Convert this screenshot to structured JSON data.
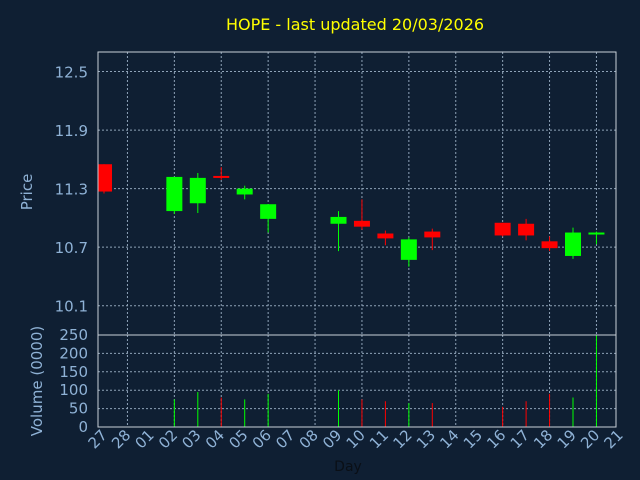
{
  "chart_data": [
    {
      "type": "candlestick",
      "title": "HOPE - last updated 20/03/2026",
      "ylabel": "Price",
      "ylim": [
        9.8,
        12.7
      ],
      "yticks": [
        10.1,
        10.7,
        11.3,
        11.9,
        12.5
      ],
      "ytick_labels": [
        "10.1",
        "10.7",
        "11.3",
        "11.9",
        "12.5"
      ],
      "grid": true,
      "x": [
        "27",
        "28",
        "01",
        "02",
        "03",
        "04",
        "05",
        "06",
        "07",
        "08",
        "09",
        "10",
        "11",
        "12",
        "13",
        "14",
        "15",
        "16",
        "17",
        "18",
        "19",
        "20",
        "21"
      ],
      "candles": [
        {
          "day": "27",
          "open": 11.55,
          "close": 11.27,
          "high": 11.55,
          "low": 11.25
        },
        {
          "day": "02",
          "open": 11.07,
          "close": 11.42,
          "high": 11.42,
          "low": 11.04
        },
        {
          "day": "03",
          "open": 11.15,
          "close": 11.41,
          "high": 11.46,
          "low": 11.05
        },
        {
          "day": "04",
          "open": 11.43,
          "close": 11.41,
          "high": 11.52,
          "low": 11.39
        },
        {
          "day": "05",
          "open": 11.24,
          "close": 11.3,
          "high": 11.33,
          "low": 11.19
        },
        {
          "day": "06",
          "open": 10.99,
          "close": 11.14,
          "high": 11.14,
          "low": 10.85
        },
        {
          "day": "09",
          "open": 10.94,
          "close": 11.01,
          "high": 11.07,
          "low": 10.66
        },
        {
          "day": "10",
          "open": 10.97,
          "close": 10.91,
          "high": 11.19,
          "low": 10.88
        },
        {
          "day": "11",
          "open": 10.84,
          "close": 10.79,
          "high": 10.87,
          "low": 10.72
        },
        {
          "day": "12",
          "open": 10.57,
          "close": 10.78,
          "high": 10.8,
          "low": 10.5
        },
        {
          "day": "13",
          "open": 10.86,
          "close": 10.8,
          "high": 10.89,
          "low": 10.67
        },
        {
          "day": "16",
          "open": 10.95,
          "close": 10.82,
          "high": 10.95,
          "low": 10.81
        },
        {
          "day": "17",
          "open": 10.94,
          "close": 10.82,
          "high": 10.99,
          "low": 10.77
        },
        {
          "day": "18",
          "open": 10.76,
          "close": 10.69,
          "high": 10.81,
          "low": 10.66
        },
        {
          "day": "19",
          "open": 10.61,
          "close": 10.85,
          "high": 10.9,
          "low": 10.58
        },
        {
          "day": "20",
          "open": 10.84,
          "close": 10.85,
          "high": 10.86,
          "low": 10.73
        }
      ]
    },
    {
      "type": "bar",
      "ylabel": "Volume (0000)",
      "xlabel": "Day",
      "ylim": [
        0,
        250
      ],
      "yticks": [
        0,
        50,
        100,
        150,
        200,
        250
      ],
      "ytick_labels": [
        "0",
        "50",
        "100",
        "150",
        "200",
        "250"
      ],
      "categories": [
        "02",
        "03",
        "04",
        "05",
        "06",
        "09",
        "10",
        "11",
        "12",
        "13",
        "16",
        "17",
        "18",
        "19",
        "20"
      ],
      "values": [
        75,
        95,
        80,
        75,
        90,
        100,
        75,
        70,
        65,
        65,
        55,
        70,
        90,
        80,
        250
      ],
      "direction": [
        "up",
        "up",
        "down",
        "up",
        "up",
        "up",
        "down",
        "down",
        "up",
        "down",
        "down",
        "down",
        "down",
        "up",
        "up"
      ]
    }
  ],
  "colors": {
    "background": "#0f1f33",
    "title": "#ffff00",
    "axis_text": "#8fb2d6",
    "grid": "#8fa3b8",
    "frame": "#c8d0d8",
    "up": "#00ff00",
    "down": "#ff0000"
  }
}
